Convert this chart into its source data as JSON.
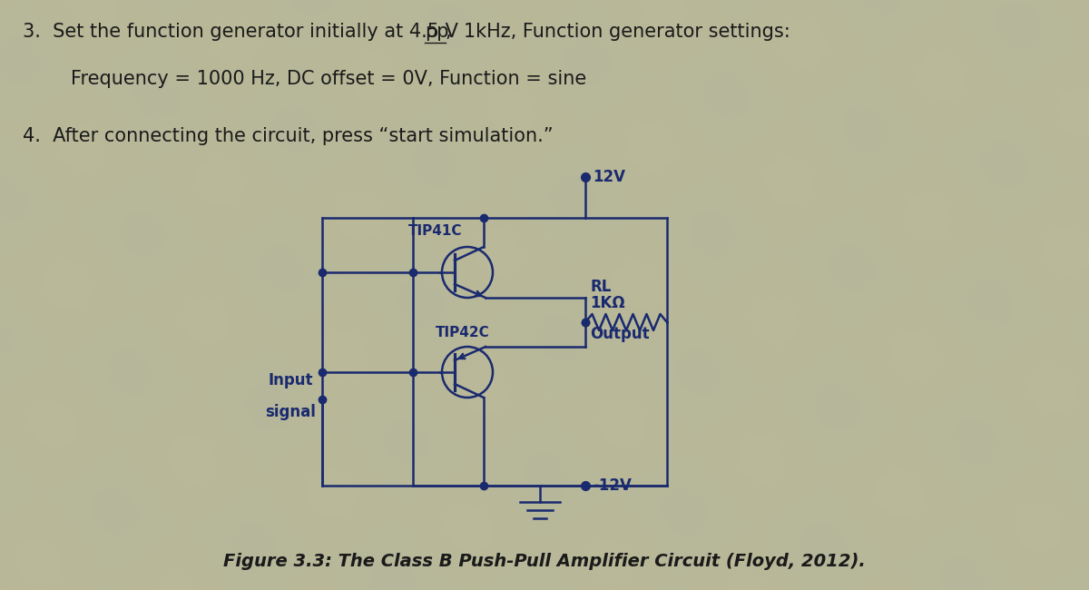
{
  "background_color": "#b8b89a",
  "circuit_line_color": "#1a2a6e",
  "dot_color": "#1a2a6e",
  "text_color": "#1a1a1a",
  "circuit_text_color": "#1a2a6e",
  "label_12v_top": "12V",
  "label_12v_bot": "-12V",
  "label_tip41c": "TIP41C",
  "label_tip42c": "TIP42C",
  "label_rl": "RL",
  "label_1k": "1KΩ",
  "label_output": "Output",
  "label_input_1": "Input",
  "label_input_2": "signal",
  "figure_caption": "Figure 3.3: The Class B Push-Pull Amplifier Circuit (Floyd, 2012).",
  "font_size_main": 15,
  "font_size_circuit": 11,
  "font_size_caption": 14,
  "lw": 1.8
}
